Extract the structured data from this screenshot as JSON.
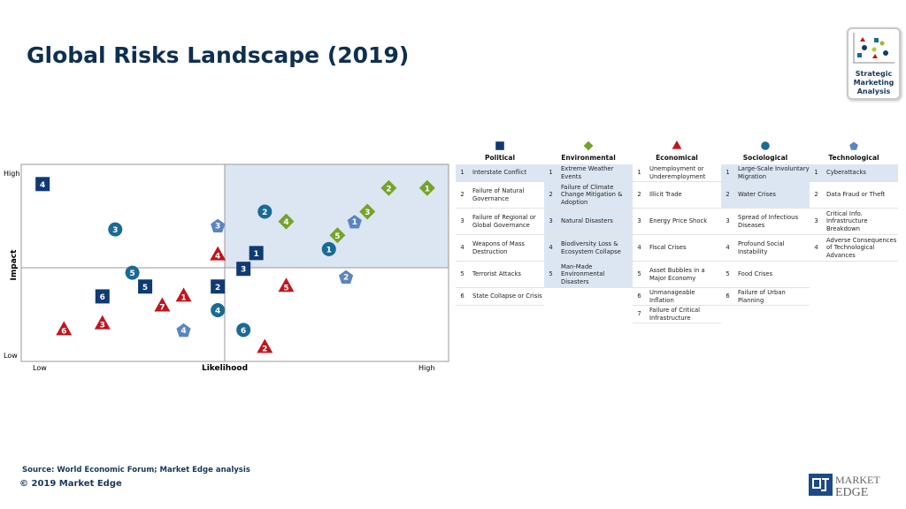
{
  "title": "Global Risks Landscape (2019)",
  "logo": {
    "line1": "Strategic",
    "line2": "Marketing",
    "line3": "Analysis"
  },
  "footer": {
    "source": "Source: World Economic Forum; Market Edge analysis",
    "copyright": "© 2019 Market Edge",
    "brand_line1": "MARKET",
    "brand_line2": "EDGE"
  },
  "colors": {
    "Political": "#0f3a73",
    "Environmental": "#77a22a",
    "Economical": "#c0151d",
    "Sociological": "#1a6a94",
    "Technological": "#5b85c0",
    "quadrant": "#dce6f2"
  },
  "chart_data": {
    "type": "scatter",
    "xlabel": "Likelihood",
    "ylabel": "Impact",
    "x_ticks": [
      "Low",
      "High"
    ],
    "y_ticks": [
      "Low",
      "High"
    ],
    "xlim": [
      0,
      10
    ],
    "ylim": [
      0,
      10
    ],
    "divider": {
      "x": 5,
      "y": 5
    },
    "highlight_quadrant": "top-right",
    "series": [
      {
        "name": "Political",
        "marker": "square",
        "points": [
          {
            "label": "1",
            "x": 5.5,
            "y": 5.5
          },
          {
            "label": "2",
            "x": 4.6,
            "y": 3.8
          },
          {
            "label": "3",
            "x": 5.2,
            "y": 4.7
          },
          {
            "label": "4",
            "x": 0.5,
            "y": 9.0
          },
          {
            "label": "5",
            "x": 2.9,
            "y": 3.8
          },
          {
            "label": "6",
            "x": 1.9,
            "y": 3.3
          }
        ]
      },
      {
        "name": "Environmental",
        "marker": "diamond",
        "points": [
          {
            "label": "1",
            "x": 9.5,
            "y": 8.8
          },
          {
            "label": "2",
            "x": 8.6,
            "y": 8.8
          },
          {
            "label": "3",
            "x": 8.1,
            "y": 7.6
          },
          {
            "label": "4",
            "x": 6.2,
            "y": 7.1
          },
          {
            "label": "5",
            "x": 7.4,
            "y": 6.4
          }
        ]
      },
      {
        "name": "Economical",
        "marker": "triangle",
        "points": [
          {
            "label": "1",
            "x": 3.8,
            "y": 3.3
          },
          {
            "label": "2",
            "x": 5.7,
            "y": 0.7
          },
          {
            "label": "3",
            "x": 1.9,
            "y": 1.9
          },
          {
            "label": "4",
            "x": 4.6,
            "y": 5.4
          },
          {
            "label": "5",
            "x": 6.2,
            "y": 3.8
          },
          {
            "label": "6",
            "x": 1.0,
            "y": 1.6
          },
          {
            "label": "7",
            "x": 3.3,
            "y": 2.8
          }
        ]
      },
      {
        "name": "Sociological",
        "marker": "circle",
        "points": [
          {
            "label": "1",
            "x": 7.2,
            "y": 5.7
          },
          {
            "label": "2",
            "x": 5.7,
            "y": 7.6
          },
          {
            "label": "3",
            "x": 2.2,
            "y": 6.7
          },
          {
            "label": "4",
            "x": 4.6,
            "y": 2.6
          },
          {
            "label": "5",
            "x": 2.6,
            "y": 4.5
          },
          {
            "label": "6",
            "x": 5.2,
            "y": 1.6
          }
        ]
      },
      {
        "name": "Technological",
        "marker": "pentagon",
        "points": [
          {
            "label": "1",
            "x": 7.8,
            "y": 7.1
          },
          {
            "label": "2",
            "x": 7.6,
            "y": 4.3
          },
          {
            "label": "3",
            "x": 4.6,
            "y": 6.9
          },
          {
            "label": "4",
            "x": 3.8,
            "y": 1.6
          }
        ]
      }
    ]
  },
  "legend": [
    {
      "name": "Political",
      "items": [
        {
          "n": "1",
          "text": "Interstate Conflict",
          "highlight": true
        },
        {
          "n": "2",
          "text": "Failure of Natural Governance"
        },
        {
          "n": "3",
          "text": "Failure of Regional or Global Governance"
        },
        {
          "n": "4",
          "text": "Weapons of Mass Destruction"
        },
        {
          "n": "5",
          "text": "Terrorist Attacks"
        },
        {
          "n": "6",
          "text": "State Collapse or Crisis"
        }
      ]
    },
    {
      "name": "Environmental",
      "items": [
        {
          "n": "1",
          "text": "Extreme Weather Events",
          "highlight": true
        },
        {
          "n": "2",
          "text": "Failure of Climate Change Mitigation & Adoption",
          "highlight": true
        },
        {
          "n": "3",
          "text": "Natural Disasters",
          "highlight": true
        },
        {
          "n": "4",
          "text": "Biodiversity Loss & Ecosystem Collapse",
          "highlight": true
        },
        {
          "n": "5",
          "text": "Man-Made Environmental Disasters",
          "highlight": true
        }
      ]
    },
    {
      "name": "Economical",
      "items": [
        {
          "n": "1",
          "text": "Unemployment or Underemployment"
        },
        {
          "n": "2",
          "text": "Illicit Trade"
        },
        {
          "n": "3",
          "text": "Energy Price Shock"
        },
        {
          "n": "4",
          "text": "Fiscal Crises"
        },
        {
          "n": "5",
          "text": "Asset Bubbles in a Major Economy"
        },
        {
          "n": "6",
          "text": "Unmanageable Inflation"
        },
        {
          "n": "7",
          "text": "Failure of Critical Infrastructure"
        }
      ]
    },
    {
      "name": "Sociological",
      "items": [
        {
          "n": "1",
          "text": "Large-Scale Involuntary Migration",
          "highlight": true
        },
        {
          "n": "2",
          "text": "Water Crises",
          "highlight": true
        },
        {
          "n": "3",
          "text": "Spread of Infectious Diseases"
        },
        {
          "n": "4",
          "text": "Profound Social Instability"
        },
        {
          "n": "5",
          "text": "Food Crises"
        },
        {
          "n": "6",
          "text": "Failure of Urban Planning"
        }
      ]
    },
    {
      "name": "Technological",
      "items": [
        {
          "n": "1",
          "text": "Cyberattacks",
          "highlight": true
        },
        {
          "n": "2",
          "text": "Data Fraud or Theft"
        },
        {
          "n": "3",
          "text": "Critical Info. Infrastructure Breakdown"
        },
        {
          "n": "4",
          "text": "Adverse Consequences of Technological Advances"
        }
      ]
    }
  ]
}
